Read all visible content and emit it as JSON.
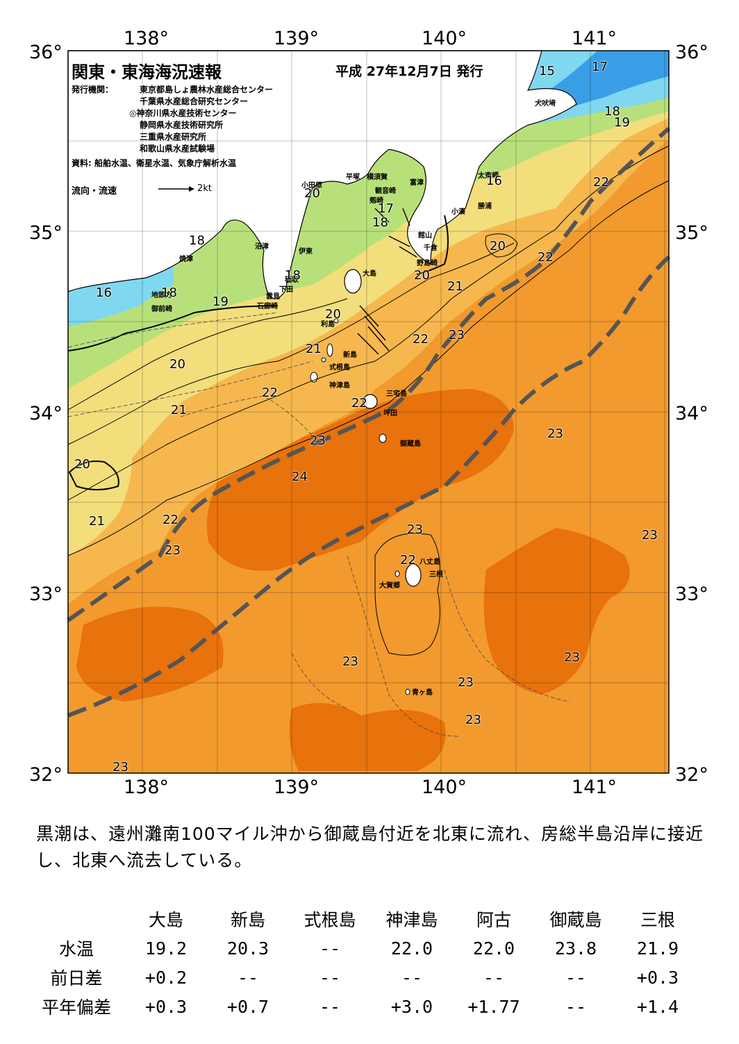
{
  "header": {
    "title": "関東・東海海況速報",
    "issue_date": "平成 27年12月7日 発行",
    "issuer_label": "発行機関：",
    "issuers": [
      "東京都島しょ農林水産総合センター",
      "千葉県水産総合研究センター",
      "◎神奈川県水産技術センター",
      "静岡県水産技術研究所",
      "三重県水産研究所",
      "和歌山県水産試験場"
    ],
    "source": "資料: 船舶水温、衛星水温、気象庁解析水温",
    "flow_label": "流向・流速",
    "flow_scale": "2kt"
  },
  "axes": {
    "longitudes": [
      "138°",
      "139°",
      "140°",
      "141°"
    ],
    "latitudes": [
      "36°",
      "35°",
      "34°",
      "33°",
      "32°"
    ]
  },
  "colors": {
    "kuroshio_axis": "#555555",
    "warm_core": "#e8720c",
    "warm": "#f29a2e",
    "mild": "#f6b84e",
    "cool_yellow": "#f3de7c",
    "green": "#b8e07a",
    "cyan": "#7fd7f0",
    "blue": "#3a9ee6",
    "land": "#ffffff"
  },
  "place_names": {
    "inubozaki": "犬吠埼",
    "taitomisaki": "太東岬",
    "katsuura": "勝浦",
    "kominato": "小湊",
    "tomiura": "富津",
    "tateyama": "館山",
    "chikura": "千倉",
    "nojimazaki": "野島崎",
    "yokosuka": "横須賀",
    "kannonzaki": "観音崎",
    "tsurugizaki": "剱崎",
    "hiratsuka": "平塚",
    "odawara": "小田原",
    "numazu": "沼津",
    "ito": "伊東",
    "inatori": "稲取",
    "shimoda": "下田",
    "mera": "雲見",
    "irozaki": "石廊崎",
    "yaizu": "焼津",
    "jitoda": "地頭方",
    "omaezaki": "御前崎",
    "oshima": "大島",
    "toshima": "利島",
    "niijima": "新島",
    "shikinejima": "式根島",
    "kozushima": "神津島",
    "miyakejima": "三宅島",
    "tsubota": "坪田",
    "mikurajima": "御蔵島",
    "hachijojima": "八丈島",
    "okago": "大賀郷",
    "mitsune": "三根",
    "aogashima": "青ヶ島"
  },
  "temperature_labels": [
    "15",
    "17",
    "18",
    "19",
    "16",
    "22",
    "20",
    "22",
    "21",
    "20",
    "22",
    "23",
    "18",
    "18",
    "18",
    "16",
    "19",
    "20",
    "17",
    "18",
    "21",
    "20",
    "20",
    "21",
    "22",
    "22",
    "23",
    "20",
    "21",
    "23",
    "24",
    "22",
    "21",
    "23",
    "23",
    "22",
    "23",
    "23",
    "23",
    "23",
    "23",
    "23",
    "23",
    "23"
  ],
  "summary": "黒潮は、遠州灘南100マイル沖から御蔵島付近を北東に流れ、房総半島沿岸に接近し、北東へ流去している。",
  "stats": {
    "columns": [
      "大島",
      "新島",
      "式根島",
      "神津島",
      "阿古",
      "御蔵島",
      "三根"
    ],
    "rows": [
      {
        "label": "水温",
        "values": [
          "19.2",
          "20.3",
          "--",
          "22.0",
          "22.0",
          "23.8",
          "21.9"
        ]
      },
      {
        "label": "前日差",
        "values": [
          "+0.2",
          "--",
          "--",
          "--",
          "--",
          "--",
          "+0.3"
        ]
      },
      {
        "label": "平年偏差",
        "values": [
          "+0.3",
          "+0.7",
          "--",
          "+3.0",
          "+1.77",
          "--",
          "+1.4"
        ]
      }
    ]
  }
}
